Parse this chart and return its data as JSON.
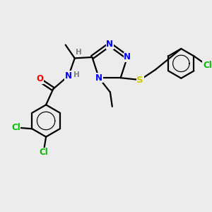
{
  "bg_color": "#ececec",
  "bond_color": "#000000",
  "bond_lw": 1.6,
  "atom_colors": {
    "N": "#0000ff",
    "O": "#ff0000",
    "S": "#cccc00",
    "Cl": "#00bb00",
    "C": "#000000",
    "H": "#808080"
  },
  "font_size": 8.5,
  "fig_size": [
    3.0,
    3.0
  ],
  "dpi": 100
}
